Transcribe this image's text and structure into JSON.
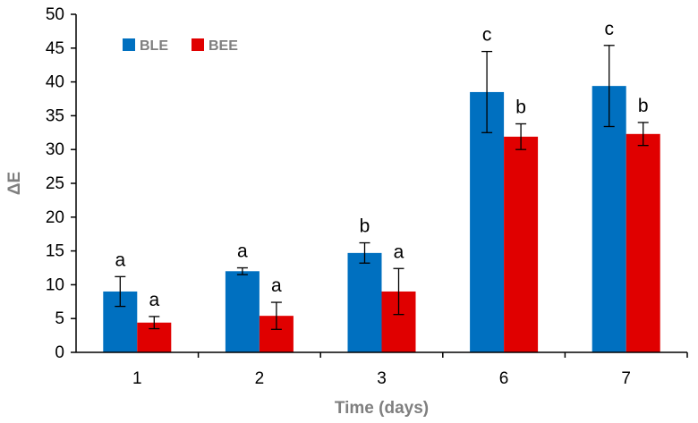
{
  "chart_data": {
    "type": "bar",
    "title": "",
    "xlabel": "Time (days)",
    "ylabel": "ΔE",
    "ylim": [
      0,
      50
    ],
    "ytick_step": 5,
    "legend_position": "top-left",
    "categories": [
      "1",
      "2",
      "3",
      "6",
      "7"
    ],
    "series": [
      {
        "name": "BLE",
        "color": "#0070c0",
        "values": [
          9.0,
          12.0,
          14.7,
          38.5,
          39.4
        ],
        "errors": [
          2.2,
          0.5,
          1.5,
          6.0,
          6.0
        ],
        "labels": [
          "a",
          "a",
          "b",
          "c",
          "c"
        ]
      },
      {
        "name": "BEE",
        "color": "#e00000",
        "values": [
          4.4,
          5.4,
          9.0,
          31.9,
          32.3
        ],
        "errors": [
          0.9,
          2.0,
          3.4,
          1.9,
          1.7
        ],
        "labels": [
          "a",
          "a",
          "a",
          "b",
          "b"
        ]
      }
    ]
  }
}
